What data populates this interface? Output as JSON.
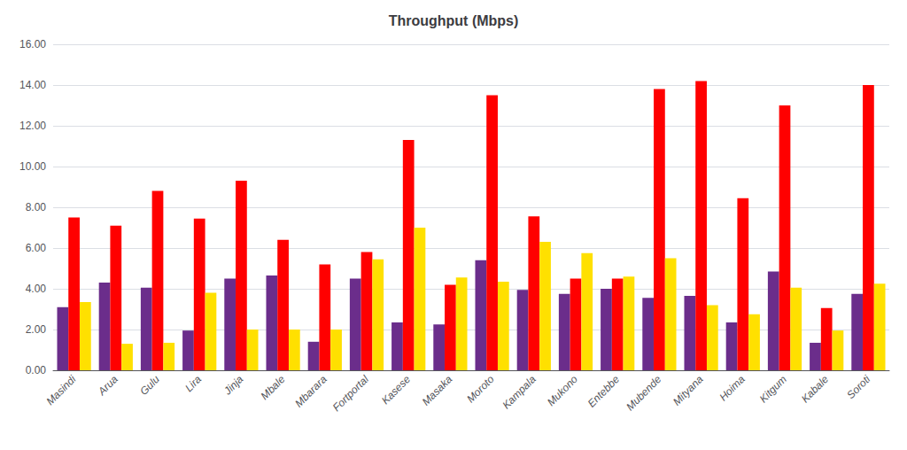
{
  "chart_data": {
    "type": "bar",
    "title": "Throughput (Mbps)",
    "categories": [
      "Masindi",
      "Arua",
      "Gulu",
      "Lira",
      "Jinja",
      "Mbale",
      "Mbarara",
      "Fortportal",
      "Kasese",
      "Masaka",
      "Moroto",
      "Kampala",
      "Mukono",
      "Entebbe",
      "Mubende",
      "Mityana",
      "Hoima",
      "Kitgum",
      "Kabale",
      "Soroti"
    ],
    "series": [
      {
        "color": "#6B2D8B",
        "values": [
          3.1,
          4.3,
          4.05,
          1.95,
          4.5,
          4.65,
          1.4,
          4.5,
          2.35,
          2.25,
          5.4,
          3.95,
          3.75,
          4.0,
          3.55,
          3.65,
          2.35,
          4.85,
          1.35,
          3.75
        ]
      },
      {
        "color": "#FF0000",
        "values": [
          7.5,
          7.1,
          8.8,
          7.45,
          9.3,
          6.4,
          5.2,
          5.8,
          11.3,
          4.2,
          13.5,
          7.55,
          4.5,
          4.5,
          13.8,
          14.2,
          8.45,
          13.0,
          3.05,
          14.0
        ]
      },
      {
        "color": "#FFE000",
        "values": [
          3.35,
          1.3,
          1.35,
          3.8,
          2.0,
          2.0,
          2.0,
          5.45,
          7.0,
          4.55,
          4.35,
          6.3,
          5.75,
          4.6,
          5.5,
          3.2,
          2.75,
          4.05,
          1.95,
          4.25
        ]
      }
    ],
    "ylim": [
      0,
      16
    ],
    "yticks": [
      {
        "value": 0,
        "label": "0.00"
      },
      {
        "value": 2,
        "label": "2.00"
      },
      {
        "value": 4,
        "label": "4.00"
      },
      {
        "value": 6,
        "label": "6.00"
      },
      {
        "value": 8,
        "label": "8.00"
      },
      {
        "value": 10,
        "label": "10.00"
      },
      {
        "value": 12,
        "label": "12.00"
      },
      {
        "value": 14,
        "label": "14.00"
      },
      {
        "value": 16,
        "label": "16.00"
      }
    ],
    "grid": true
  }
}
